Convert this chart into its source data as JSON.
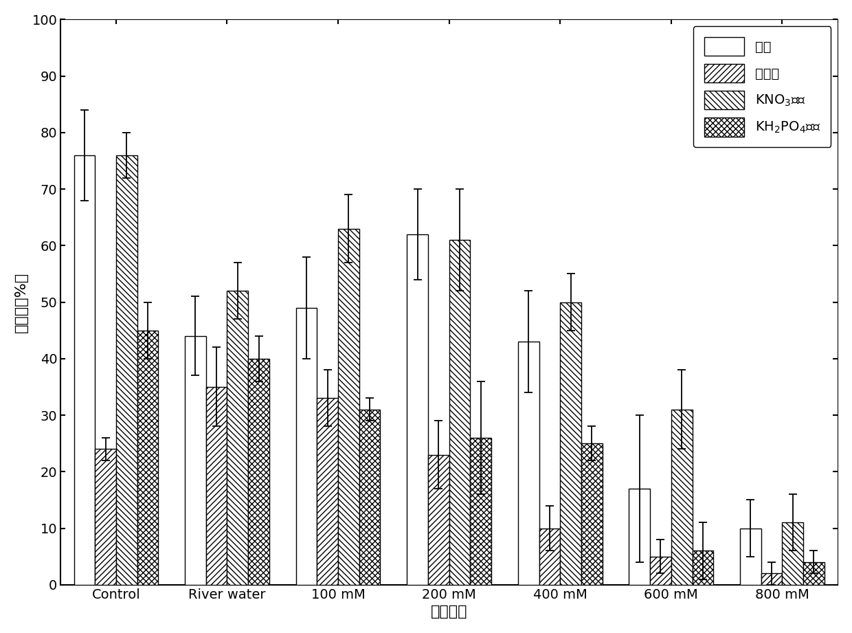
{
  "categories": [
    "Control",
    "River water",
    "100 mM",
    "200 mM",
    "400 mM",
    "600 mM",
    "800 mM"
  ],
  "series": {
    "control": {
      "values": [
        76,
        44,
        49,
        62,
        43,
        17,
        10
      ],
      "errors": [
        8,
        7,
        9,
        8,
        9,
        13,
        5
      ],
      "label": "对照",
      "facecolor": "white",
      "edgecolor": "black",
      "hatch": ""
    },
    "water": {
      "values": [
        24,
        35,
        33,
        23,
        10,
        5,
        2
      ],
      "errors": [
        2,
        7,
        5,
        6,
        4,
        3,
        2
      ],
      "label": "水引发",
      "facecolor": "white",
      "edgecolor": "black",
      "hatch": "////"
    },
    "kno3": {
      "values": [
        76,
        52,
        63,
        61,
        50,
        31,
        11
      ],
      "errors": [
        4,
        5,
        6,
        9,
        5,
        7,
        5
      ],
      "label": "KNO$_3$引发",
      "facecolor": "white",
      "edgecolor": "black",
      "hatch": "\\\\\\\\"
    },
    "kh2po4": {
      "values": [
        45,
        40,
        31,
        26,
        25,
        6,
        4
      ],
      "errors": [
        5,
        4,
        2,
        10,
        3,
        5,
        2
      ],
      "label": "KH$_2$PO$_4$引发",
      "facecolor": "white",
      "edgecolor": "black",
      "hatch": "xxxx"
    }
  },
  "ylabel": "出芽率（%）",
  "xlabel": "盐分含量",
  "ylim": [
    0,
    100
  ],
  "yticks": [
    0,
    10,
    20,
    30,
    40,
    50,
    60,
    70,
    80,
    90,
    100
  ],
  "bar_width": 0.19,
  "axis_fontsize": 16,
  "tick_fontsize": 14,
  "legend_fontsize": 14,
  "background_color": "white"
}
